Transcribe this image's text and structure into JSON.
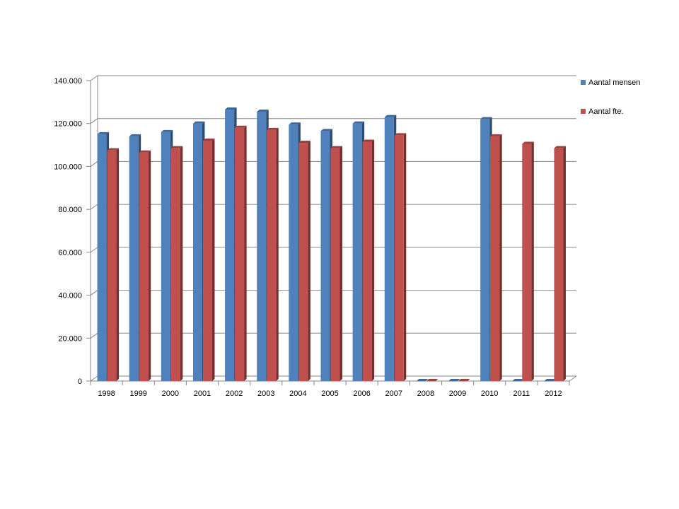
{
  "chart_data": {
    "type": "bar",
    "categories": [
      "1998",
      "1999",
      "2000",
      "2001",
      "2002",
      "2003",
      "2004",
      "2005",
      "2006",
      "2007",
      "2008",
      "2009",
      "2010",
      "2011",
      "2012"
    ],
    "series": [
      {
        "name": "Aantal mensen",
        "color": "#4f81bd",
        "values": [
          115000,
          114000,
          116000,
          120000,
          126500,
          125500,
          119500,
          116500,
          120000,
          123000,
          0,
          0,
          122000,
          0,
          0
        ]
      },
      {
        "name": "Aantal fte.",
        "color": "#c0504d",
        "values": [
          107500,
          106500,
          108500,
          112000,
          118000,
          117000,
          111000,
          108500,
          111500,
          114500,
          0,
          0,
          114000,
          110500,
          108500
        ]
      }
    ],
    "ylim": [
      0,
      140000
    ],
    "yticks": [
      0,
      20000,
      40000,
      60000,
      80000,
      100000,
      120000,
      140000
    ],
    "ytick_labels": [
      "0",
      "20.000",
      "40.000",
      "60.000",
      "80.000",
      "100.000",
      "120.000",
      "140.000"
    ],
    "title": "",
    "xlabel": "",
    "ylabel": "",
    "grid": true,
    "legend": "right"
  }
}
